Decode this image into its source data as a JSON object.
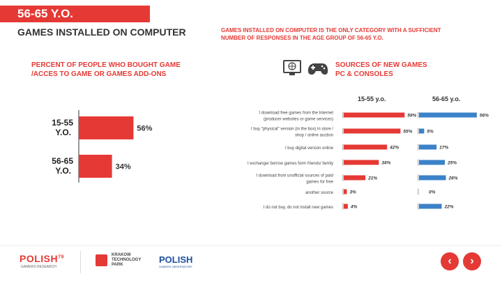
{
  "header": {
    "title": "56-65 Y.O.",
    "subtitle": "GAMES INSTALLED ON COMPUTER",
    "note": "GAMES INSTALLED ON COMPUTER IS THE ONLY CATEGORY WITH A SUFFICIENT NUMBER OF RESPONSES IN THE AGE GROUP OF 56-65 Y.O."
  },
  "colors": {
    "red": "#e53935",
    "blue": "#3b82c9",
    "grey": "#cccccc"
  },
  "chart_data": [
    {
      "type": "bar",
      "orientation": "horizontal",
      "title": "PERCENT OF PEOPLE WHO BOUGHT GAME /ACCES TO GAME OR GAMES ADD-ONS",
      "categories": [
        "15-55 Y.O.",
        "56-65 Y.O."
      ],
      "categories_line1": [
        "15-55",
        "56-65"
      ],
      "categories_line2": [
        "Y.O.",
        "Y.O."
      ],
      "values": [
        56,
        34
      ],
      "labels": [
        "56%",
        "34%"
      ],
      "xlim": [
        0,
        100
      ]
    },
    {
      "type": "bar",
      "orientation": "horizontal",
      "title": "SOURCES OF NEW GAMES PC & CONSOLES",
      "title_line1": "SOURCES OF NEW GAMES",
      "title_line2": "PC & CONSOLES",
      "categories": [
        [
          "I download free games from the Internet",
          "(producer websites or game services)"
        ],
        [
          "I buy \"physical\" version (in the box) in store /",
          "shop / online auction"
        ],
        [
          "I buy digital version online"
        ],
        [
          "I exchange/ borrow games form friends/ family"
        ],
        [
          "I download from unofficial sources of paid",
          "games for free"
        ],
        [
          "another source"
        ],
        [
          "I do not buy, do not install new games"
        ]
      ],
      "series": [
        {
          "name": "15-55 y.o.",
          "values": [
            59,
            55,
            42,
            34,
            21,
            3,
            4
          ],
          "labels": [
            "59%",
            "55%",
            "42%",
            "34%",
            "21%",
            "3%",
            "4%"
          ]
        },
        {
          "name": "56-65 y.o.",
          "values": [
            56,
            5,
            17,
            25,
            26,
            0,
            22
          ],
          "labels": [
            "56%",
            "5%",
            "17%",
            "25%",
            "26%",
            "0%",
            "22%"
          ]
        }
      ],
      "xlim": [
        0,
        100
      ]
    }
  ],
  "footer": {
    "logo1": "POLISH",
    "logo1_sup": "79",
    "logo1_sub": "GAMERS RESEARCH",
    "logo2_line1": "KRAKOW",
    "logo2_line2": "TECHNOLOGY",
    "logo2_line3": "PARK",
    "logo3": "POLISH",
    "logo3_sub": "GAMERS OBSERVATORY",
    "prev_icon": "‹",
    "next_icon": "›"
  }
}
